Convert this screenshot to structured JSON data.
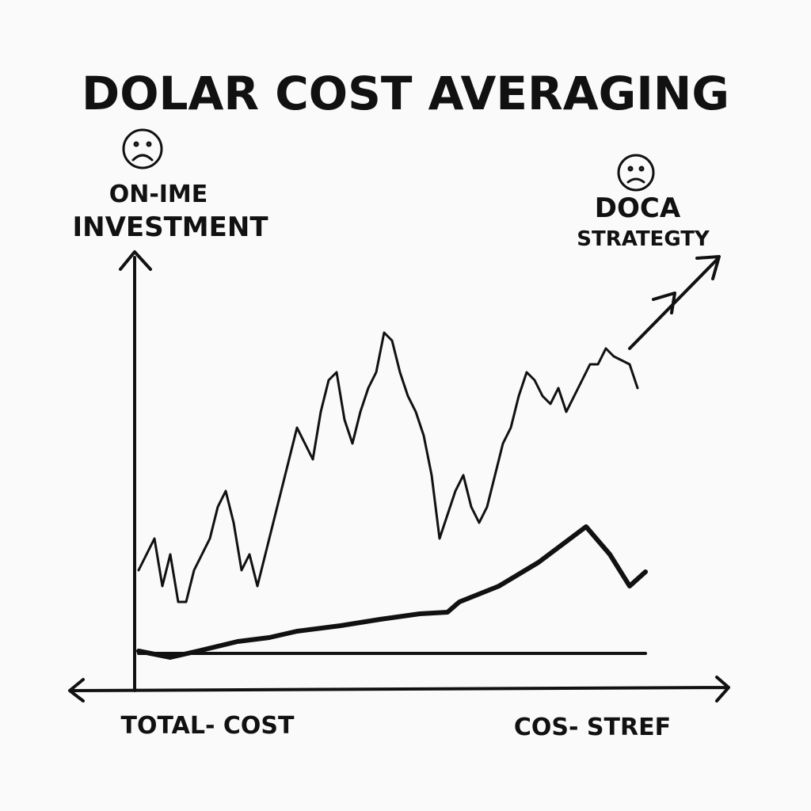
{
  "chart_data": {
    "type": "line",
    "title": "DOLAR COST AVERAGING",
    "annotations": [
      "ON-IME",
      "INVESTMENT",
      "DOCA",
      "STRATEGTY"
    ],
    "x_labels": [
      "TOTAL- COST",
      "COS- STREF"
    ],
    "xlim": [
      0,
      750
    ],
    "ylim": [
      0,
      540
    ],
    "series": [
      {
        "color": "#111111",
        "width": 3,
        "x": [
          5,
          15,
          25,
          35,
          45,
          55,
          65,
          75,
          85,
          95,
          105,
          115,
          125,
          135,
          145,
          155,
          165,
          175,
          185,
          195,
          205,
          215,
          225,
          235,
          245,
          255,
          265,
          275,
          285,
          295,
          305,
          315,
          325,
          335,
          345,
          355,
          365,
          375,
          385,
          395,
          405,
          415,
          425,
          435,
          445,
          455,
          465,
          475,
          485,
          495,
          505,
          515,
          525,
          535,
          545,
          555,
          565,
          575,
          585,
          595,
          605,
          625,
          635
        ],
        "values": [
          150,
          170,
          190,
          130,
          170,
          110,
          110,
          150,
          170,
          190,
          230,
          250,
          210,
          150,
          170,
          130,
          170,
          210,
          250,
          290,
          330,
          310,
          290,
          350,
          390,
          400,
          340,
          310,
          350,
          380,
          400,
          450,
          440,
          400,
          370,
          350,
          320,
          270,
          190,
          220,
          250,
          270,
          230,
          210,
          230,
          270,
          310,
          330,
          370,
          400,
          390,
          370,
          360,
          380,
          350,
          370,
          390,
          410,
          410,
          430,
          420,
          410,
          380
        ]
      },
      {
        "color": "#111111",
        "width": 6,
        "x": [
          5,
          45,
          80,
          130,
          170,
          205,
          260,
          310,
          360,
          395,
          410,
          460,
          510,
          570,
          600,
          625,
          645
        ],
        "values": [
          48,
          40,
          48,
          60,
          65,
          73,
          80,
          88,
          95,
          97,
          110,
          130,
          160,
          205,
          170,
          130,
          148
        ]
      },
      {
        "color": "#111111",
        "width": 4,
        "x": [
          5,
          645
        ],
        "values": [
          45,
          45
        ]
      }
    ]
  }
}
